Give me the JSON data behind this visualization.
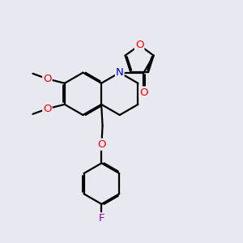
{
  "background_color": "#e8e8f0",
  "atom_colors": {
    "O": "#ff0000",
    "N": "#0000cc",
    "F": "#9900bb",
    "C": "#000000"
  },
  "bond_width": 1.6,
  "dbo": 0.055,
  "fs": 9.5
}
